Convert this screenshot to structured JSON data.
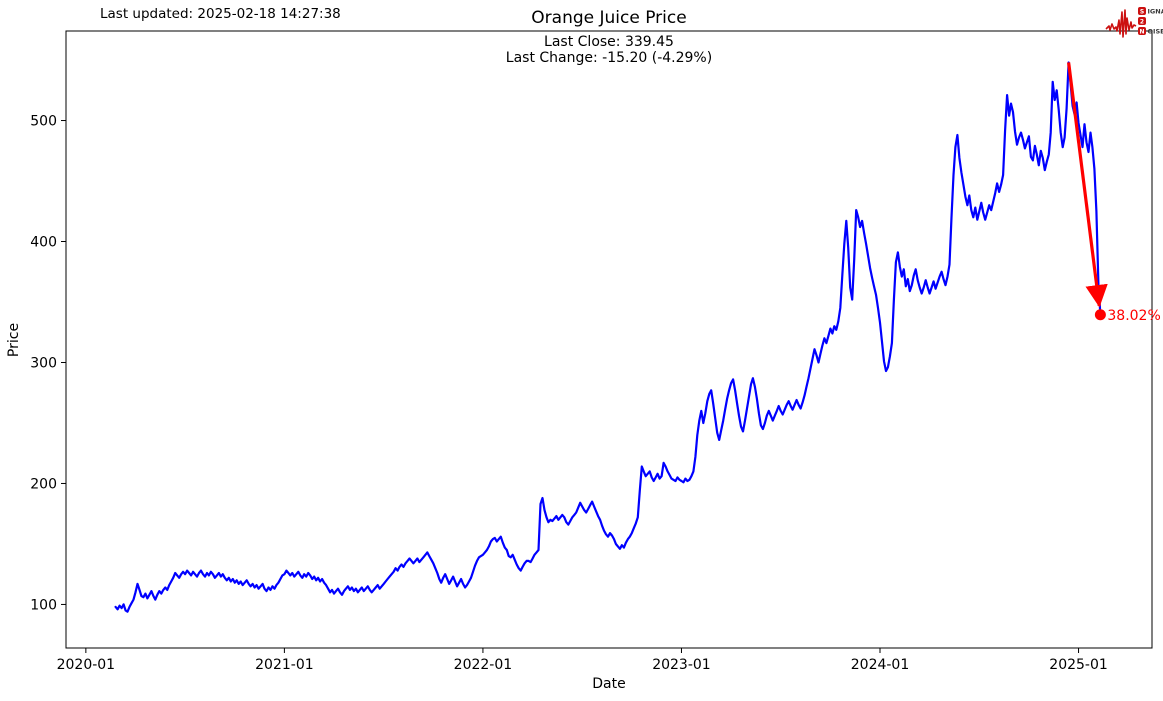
{
  "header": {
    "last_updated": "Last updated: 2025-02-18 14:27:38",
    "title": "Orange Juice  Price",
    "subtitle_close": "Last Close: 339.45",
    "subtitle_change": "Last Change: -15.20 (-4.29%)"
  },
  "logo": {
    "row1_boxed": "S",
    "row1_rest": "IGNAL",
    "row2_boxed": "2",
    "row3_boxed": "N",
    "row3_rest": "OISE",
    "accent_color": "#cc1111"
  },
  "chart_data": {
    "type": "line",
    "title": "Orange Juice  Price",
    "xlabel": "Date",
    "ylabel": "Price",
    "x_ticks": [
      "2020-01",
      "2021-01",
      "2022-01",
      "2023-01",
      "2024-01",
      "2025-01"
    ],
    "x_tick_years": [
      2020,
      2021,
      2022,
      2023,
      2024,
      2025
    ],
    "y_ticks": [
      100,
      200,
      300,
      400,
      500
    ],
    "xlim": [
      2019.9,
      2025.37
    ],
    "ylim": [
      64,
      574
    ],
    "grid": false,
    "legend": "none",
    "line_color": "#0000ff",
    "last_close": 339.45,
    "last_change": -15.2,
    "last_change_pct": -4.29,
    "series": [
      {
        "name": "Orange Juice price",
        "color": "#0000ff",
        "t_start": 2020.15,
        "t_step": 0.01,
        "prices": [
          98,
          96,
          99,
          97,
          100,
          95,
          94,
          98,
          101,
          104,
          110,
          117,
          112,
          107,
          106,
          109,
          105,
          108,
          111,
          107,
          104,
          108,
          111,
          109,
          112,
          114,
          112,
          116,
          119,
          122,
          126,
          124,
          122,
          125,
          127,
          125,
          128,
          126,
          124,
          127,
          125,
          123,
          126,
          128,
          125,
          123,
          126,
          124,
          127,
          125,
          122,
          124,
          126,
          123,
          125,
          122,
          120,
          122,
          119,
          121,
          118,
          120,
          117,
          119,
          116,
          118,
          120,
          117,
          115,
          117,
          114,
          116,
          113,
          115,
          117,
          113,
          111,
          114,
          112,
          115,
          113,
          116,
          118,
          121,
          124,
          125,
          128,
          126,
          124,
          126,
          123,
          125,
          127,
          124,
          122,
          125,
          123,
          126,
          124,
          121,
          123,
          120,
          122,
          119,
          121,
          118,
          116,
          113,
          110,
          112,
          109,
          111,
          113,
          110,
          108,
          111,
          113,
          115,
          112,
          114,
          111,
          113,
          110,
          112,
          114,
          111,
          113,
          115,
          112,
          110,
          112,
          114,
          116,
          113,
          115,
          117,
          119,
          121,
          123,
          125,
          127,
          130,
          128,
          131,
          133,
          131,
          134,
          136,
          138,
          136,
          134,
          136,
          138,
          135,
          137,
          139,
          141,
          143,
          140,
          137,
          134,
          130,
          126,
          121,
          118,
          122,
          125,
          121,
          117,
          120,
          123,
          119,
          115,
          118,
          121,
          117,
          114,
          116,
          119,
          122,
          127,
          132,
          136,
          139,
          140,
          141,
          143,
          145,
          148,
          152,
          154,
          155,
          152,
          154,
          156,
          151,
          147,
          145,
          140,
          139,
          141,
          137,
          133,
          130,
          128,
          131,
          134,
          136,
          136,
          135,
          138,
          141,
          143,
          145,
          183,
          188,
          178,
          172,
          168,
          170,
          169,
          171,
          173,
          170,
          172,
          174,
          172,
          168,
          166,
          169,
          172,
          174,
          176,
          180,
          184,
          181,
          178,
          176,
          179,
          182,
          185,
          181,
          177,
          173,
          170,
          165,
          161,
          158,
          156,
          159,
          157,
          154,
          150,
          148,
          146,
          149,
          147,
          151,
          154,
          156,
          159,
          163,
          167,
          172,
          194,
          214,
          210,
          206,
          208,
          210,
          205,
          202,
          205,
          208,
          204,
          206,
          217,
          214,
          210,
          207,
          204,
          203,
          202,
          205,
          203,
          202,
          201,
          204,
          202,
          203,
          206,
          210,
          222,
          240,
          252,
          260,
          250,
          258,
          268,
          274,
          277,
          266,
          254,
          242,
          236,
          244,
          252,
          261,
          270,
          277,
          283,
          286,
          277,
          266,
          256,
          247,
          243,
          252,
          262,
          272,
          282,
          287,
          280,
          270,
          258,
          248,
          245,
          250,
          256,
          260,
          256,
          252,
          256,
          260,
          264,
          260,
          257,
          261,
          265,
          268,
          264,
          261,
          265,
          269,
          265,
          262,
          267,
          273,
          280,
          287,
          295,
          303,
          311,
          306,
          300,
          307,
          314,
          320,
          316,
          322,
          328,
          324,
          330,
          327,
          334,
          345,
          372,
          398,
          417,
          395,
          362,
          352,
          385,
          426,
          420,
          412,
          417,
          407,
          398,
          388,
          378,
          370,
          363,
          356,
          345,
          333,
          317,
          301,
          293,
          296,
          305,
          316,
          352,
          383,
          391,
          379,
          371,
          377,
          363,
          369,
          359,
          364,
          372,
          377,
          368,
          362,
          357,
          362,
          368,
          362,
          357,
          362,
          367,
          361,
          366,
          371,
          375,
          369,
          364,
          371,
          381,
          420,
          455,
          478,
          488,
          469,
          457,
          447,
          437,
          430,
          438,
          426,
          420,
          428,
          418,
          425,
          432,
          424,
          418,
          424,
          430,
          426,
          433,
          440,
          448,
          441,
          447,
          455,
          492,
          521,
          504,
          514,
          507,
          491,
          480,
          486,
          490,
          484,
          477,
          482,
          487,
          470,
          467,
          479,
          472,
          463,
          475,
          469,
          459,
          466,
          472,
          490,
          532,
          517,
          525,
          509,
          490,
          478,
          486,
          510,
          548,
          530,
          512,
          505,
          515,
          498,
          488,
          478,
          497,
          482,
          474,
          490,
          478,
          460,
          425,
          365,
          339.45
        ]
      }
    ],
    "annotation": {
      "color": "#ff0000",
      "from": {
        "t": 2024.95,
        "price": 548
      },
      "to": {
        "t": 2025.11,
        "price": 339.45
      },
      "label": "38.02%"
    }
  }
}
